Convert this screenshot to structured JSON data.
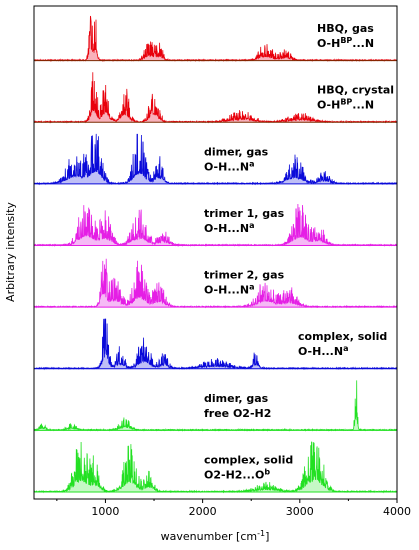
{
  "chart_data": {
    "type": "line",
    "xlabel": "wavenumber [cm",
    "xlabel_exp": "-1",
    "xlabel_close": "]",
    "ylabel": "Arbitrary intensity",
    "xlim": [
      0,
      4000
    ],
    "x_ticks": [
      1000,
      2000,
      3000,
      4000
    ],
    "grid": false,
    "panels": [
      {
        "line1": "HBQ, gas",
        "line2_pre": "O-H",
        "line2_sup": "BP",
        "line2_post": "...N",
        "color": "#e8000b",
        "fill": "#f7a8b4",
        "edge": "#7a2a00",
        "peaks": [
          {
            "x": 850,
            "h": 1.0,
            "w": 25
          },
          {
            "x": 900,
            "h": 0.85,
            "w": 20
          },
          {
            "x": 1450,
            "h": 0.35,
            "w": 60
          },
          {
            "x": 1550,
            "h": 0.3,
            "w": 50
          },
          {
            "x": 2650,
            "h": 0.28,
            "w": 90
          },
          {
            "x": 2850,
            "h": 0.18,
            "w": 80
          }
        ]
      },
      {
        "line1": "HBQ, crystal",
        "line2_pre": "O-H",
        "line2_sup": "BP",
        "line2_post": "...N",
        "color": "#e8000b",
        "fill": "#f7a8b4",
        "edge": "#7a2a00",
        "peaks": [
          {
            "x": 880,
            "h": 0.9,
            "w": 40
          },
          {
            "x": 1000,
            "h": 0.7,
            "w": 50
          },
          {
            "x": 1200,
            "h": 0.55,
            "w": 60
          },
          {
            "x": 1500,
            "h": 0.6,
            "w": 60
          },
          {
            "x": 2400,
            "h": 0.2,
            "w": 150
          },
          {
            "x": 3000,
            "h": 0.15,
            "w": 150
          }
        ]
      },
      {
        "line1": "dimer, gas",
        "line2_pre": "O-H...N",
        "line2_sup": "a",
        "line2_post": "",
        "color": "#0a0ad9",
        "fill": "#b8b8f5",
        "edge": "#0a0ad9",
        "peaks": [
          {
            "x": 700,
            "h": 0.6,
            "w": 120
          },
          {
            "x": 900,
            "h": 0.9,
            "w": 80
          },
          {
            "x": 1350,
            "h": 0.85,
            "w": 80
          },
          {
            "x": 1550,
            "h": 0.45,
            "w": 60
          },
          {
            "x": 2950,
            "h": 0.45,
            "w": 110
          },
          {
            "x": 3250,
            "h": 0.2,
            "w": 80
          }
        ]
      },
      {
        "line1": "trimer 1, gas",
        "line2_pre": "O-H...N",
        "line2_sup": "a",
        "line2_post": "",
        "color": "#e51ee5",
        "fill": "#f4b3f4",
        "edge": "#e51ee5",
        "peaks": [
          {
            "x": 800,
            "h": 0.75,
            "w": 100
          },
          {
            "x": 1000,
            "h": 0.55,
            "w": 80
          },
          {
            "x": 1350,
            "h": 0.55,
            "w": 100
          },
          {
            "x": 1600,
            "h": 0.25,
            "w": 80
          },
          {
            "x": 3000,
            "h": 0.65,
            "w": 100
          },
          {
            "x": 3200,
            "h": 0.35,
            "w": 80
          }
        ]
      },
      {
        "line1": "trimer 2, gas",
        "line2_pre": "O-H...N",
        "line2_sup": "a",
        "line2_post": "",
        "color": "#e51ee5",
        "fill": "#f4b3f4",
        "edge": "#e51ee5",
        "peaks": [
          {
            "x": 980,
            "h": 1.0,
            "w": 40
          },
          {
            "x": 1100,
            "h": 0.5,
            "w": 80
          },
          {
            "x": 1350,
            "h": 0.75,
            "w": 80
          },
          {
            "x": 1550,
            "h": 0.4,
            "w": 80
          },
          {
            "x": 2650,
            "h": 0.45,
            "w": 120
          },
          {
            "x": 2900,
            "h": 0.3,
            "w": 100
          }
        ]
      },
      {
        "line1": "complex, solid",
        "line2_pre": "O-H...N",
        "line2_sup": "a",
        "line2_post": "",
        "color": "#0a0ad9",
        "fill": "#b8b8f5",
        "edge": "#0a0ad9",
        "peaks": [
          {
            "x": 1000,
            "h": 0.95,
            "w": 40
          },
          {
            "x": 1150,
            "h": 0.35,
            "w": 60
          },
          {
            "x": 1400,
            "h": 0.55,
            "w": 80
          },
          {
            "x": 1600,
            "h": 0.25,
            "w": 60
          },
          {
            "x": 2150,
            "h": 0.15,
            "w": 200
          },
          {
            "x": 2550,
            "h": 0.3,
            "w": 40
          }
        ]
      },
      {
        "line1": "dimer, gas",
        "line2_pre": "free O2-H2",
        "line2_sup": "",
        "line2_post": "",
        "color": "#22e022",
        "fill": "#c0f7c0",
        "edge": "#22e022",
        "peaks": [
          {
            "x": 350,
            "h": 0.12,
            "w": 40
          },
          {
            "x": 650,
            "h": 0.12,
            "w": 60
          },
          {
            "x": 1200,
            "h": 0.22,
            "w": 70
          },
          {
            "x": 3580,
            "h": 1.0,
            "w": 18
          }
        ]
      },
      {
        "line1": "complex, solid",
        "line2_pre": "O2-H2...O",
        "line2_sup": "b",
        "line2_post": "",
        "color": "#22e022",
        "fill": "#c0f7c0",
        "edge": "#22e022",
        "peaks": [
          {
            "x": 750,
            "h": 0.9,
            "w": 90
          },
          {
            "x": 900,
            "h": 0.5,
            "w": 60
          },
          {
            "x": 1250,
            "h": 0.75,
            "w": 90
          },
          {
            "x": 1450,
            "h": 0.35,
            "w": 60
          },
          {
            "x": 2650,
            "h": 0.15,
            "w": 150
          },
          {
            "x": 3150,
            "h": 0.9,
            "w": 110
          }
        ]
      }
    ]
  }
}
